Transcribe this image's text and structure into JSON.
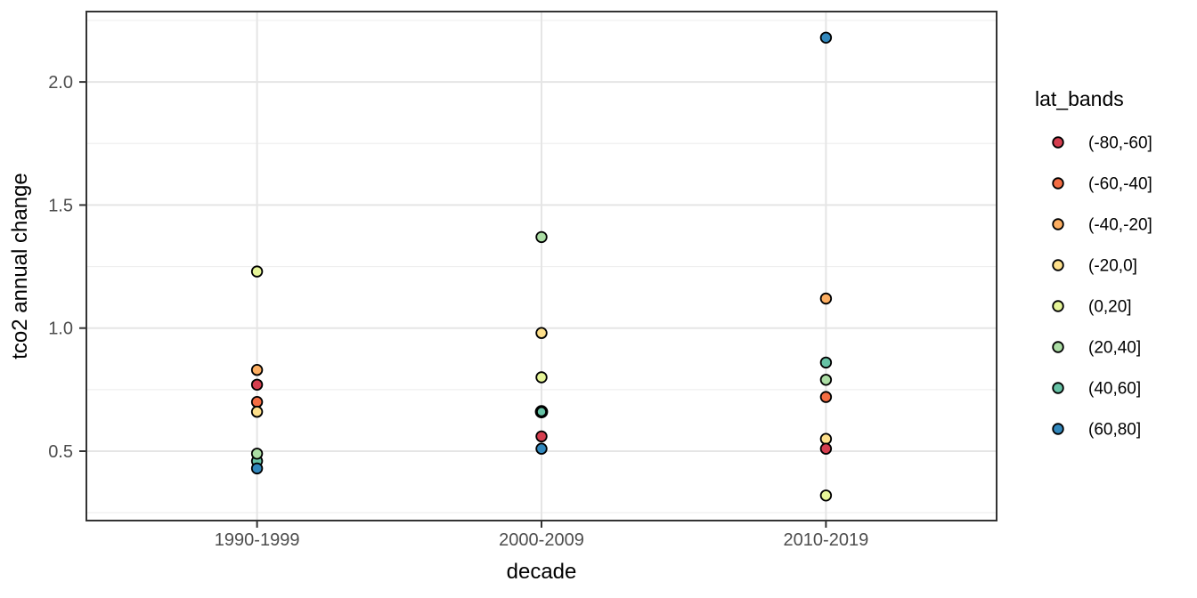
{
  "figure": {
    "background": "#ffffff",
    "panel_border_color": "#333333",
    "grid_major_color": "#e5e5e5",
    "grid_minor_color": "#efefef",
    "axis_tick_color": "#333333",
    "axis_text_color": "#4d4d4d",
    "axis_title_color": "#000000",
    "point_stroke_color": "#000000"
  },
  "chart_data": {
    "type": "scatter",
    "title": "",
    "xlabel": "decade",
    "ylabel": "tco2 annual change",
    "categories": [
      "1990-1999",
      "2000-2009",
      "2010-2019"
    ],
    "y_major_ticks": [
      0.5,
      1.0,
      1.5,
      2.0
    ],
    "y_tick_labels": [
      "0.5",
      "1.0",
      "1.5",
      "2.0"
    ],
    "y_minor_ticks": [
      0.25,
      0.75,
      1.25,
      1.75,
      2.25
    ],
    "ylim": [
      0.218,
      2.286
    ],
    "grid": true,
    "legend": {
      "title": "lat_bands",
      "position": "right",
      "entries": [
        {
          "label": "(-80,-60]",
          "color": "#d53e4f"
        },
        {
          "label": "(-60,-40]",
          "color": "#f46d43"
        },
        {
          "label": "(-40,-20]",
          "color": "#fdae61"
        },
        {
          "label": "(-20,0]",
          "color": "#fee08b"
        },
        {
          "label": "(0,20]",
          "color": "#e6f598"
        },
        {
          "label": "(20,40]",
          "color": "#abdda4"
        },
        {
          "label": "(40,60]",
          "color": "#66c2a5"
        },
        {
          "label": "(60,80]",
          "color": "#3288bd"
        }
      ]
    },
    "points": [
      {
        "decade": "1990-1999",
        "band": "(0,20]",
        "value": 1.23
      },
      {
        "decade": "1990-1999",
        "band": "(-40,-20]",
        "value": 0.83
      },
      {
        "decade": "1990-1999",
        "band": "(-80,-60]",
        "value": 0.77
      },
      {
        "decade": "1990-1999",
        "band": "(-60,-40]",
        "value": 0.7
      },
      {
        "decade": "1990-1999",
        "band": "(-20,0]",
        "value": 0.66
      },
      {
        "decade": "1990-1999",
        "band": "(40,60]",
        "value": 0.46
      },
      {
        "decade": "1990-1999",
        "band": "(20,40]",
        "value": 0.49
      },
      {
        "decade": "1990-1999",
        "band": "(60,80]",
        "value": 0.43
      },
      {
        "decade": "2000-2009",
        "band": "(20,40]",
        "value": 1.37
      },
      {
        "decade": "2000-2009",
        "band": "(-20,0]",
        "value": 0.98
      },
      {
        "decade": "2000-2009",
        "band": "(0,20]",
        "value": 0.8
      },
      {
        "decade": "2000-2009",
        "band": "(40,60]",
        "value": 0.66,
        "thick_ring": true
      },
      {
        "decade": "2000-2009",
        "band": "(-80,-60]",
        "value": 0.56
      },
      {
        "decade": "2000-2009",
        "band": "(60,80]",
        "value": 0.51
      },
      {
        "decade": "2010-2019",
        "band": "(60,80]",
        "value": 2.18
      },
      {
        "decade": "2010-2019",
        "band": "(-40,-20]",
        "value": 1.12
      },
      {
        "decade": "2010-2019",
        "band": "(40,60]",
        "value": 0.86
      },
      {
        "decade": "2010-2019",
        "band": "(20,40]",
        "value": 0.79
      },
      {
        "decade": "2010-2019",
        "band": "(-60,-40]",
        "value": 0.72
      },
      {
        "decade": "2010-2019",
        "band": "(-20,0]",
        "value": 0.55
      },
      {
        "decade": "2010-2019",
        "band": "(-80,-60]",
        "value": 0.51
      },
      {
        "decade": "2010-2019",
        "band": "(0,20]",
        "value": 0.32
      }
    ]
  }
}
